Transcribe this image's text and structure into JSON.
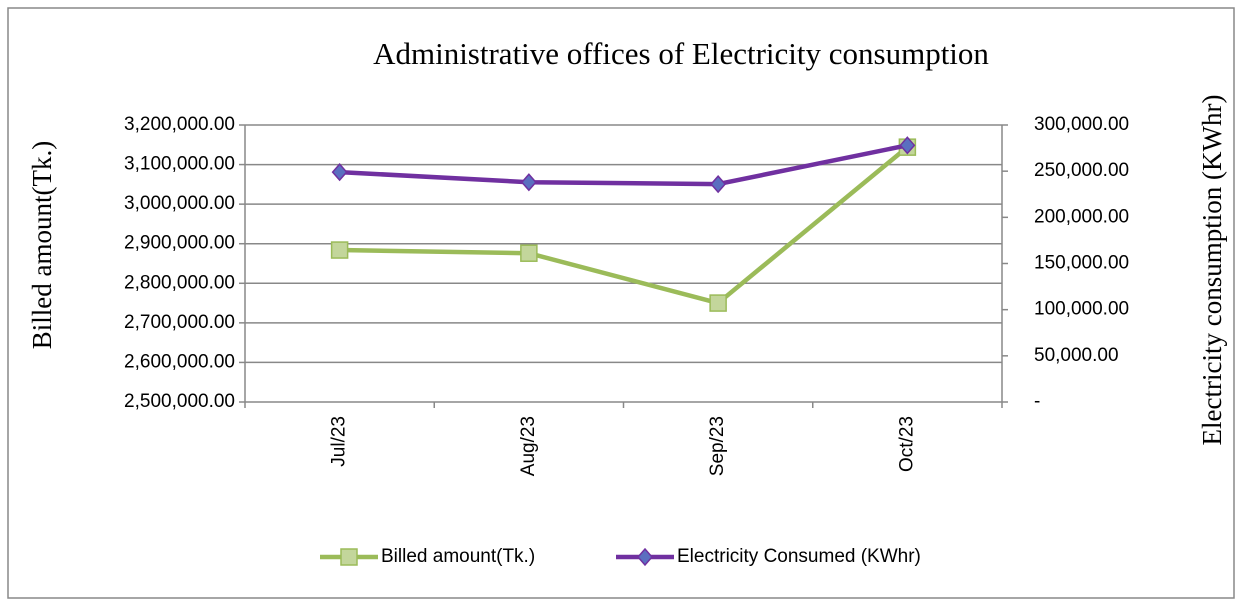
{
  "chart_data": {
    "type": "line",
    "title": "Administrative offices of Electricity consumption",
    "ylabel": "Billed amount(Tk.)",
    "y2label": "Electricity consumption (KWhr)",
    "categories": [
      "Jul/23",
      "Aug/23",
      "Sep/23",
      "Oct/23"
    ],
    "series": [
      {
        "name": "Billed amount(Tk.)",
        "color": "#9bbb59",
        "values": [
          2884000,
          2876000,
          2750000,
          3144000
        ]
      },
      {
        "name": "Electricity Consumed (KWhr)",
        "color": "#7030a0",
        "axis": "y2",
        "values": [
          249000,
          238000,
          236000,
          278000
        ]
      }
    ],
    "ylim": [
      2500000,
      3200000
    ],
    "yticks": [
      {
        "value": 2500000,
        "label": "2,500,000.00"
      },
      {
        "value": 2600000,
        "label": "2,600,000.00"
      },
      {
        "value": 2700000,
        "label": "2,700,000.00"
      },
      {
        "value": 2800000,
        "label": "2,800,000.00"
      },
      {
        "value": 2900000,
        "label": "2,900,000.00"
      },
      {
        "value": 3000000,
        "label": "3,000,000.00"
      },
      {
        "value": 3100000,
        "label": "3,100,000.00"
      },
      {
        "value": 3200000,
        "label": "3,200,000.00"
      }
    ],
    "y2lim": [
      0,
      300000
    ],
    "y2ticks": [
      {
        "value": 0,
        "label": "-"
      },
      {
        "value": 50000,
        "label": "50,000.00"
      },
      {
        "value": 100000,
        "label": "100,000.00"
      },
      {
        "value": 150000,
        "label": "150,000.00"
      },
      {
        "value": 200000,
        "label": "200,000.00"
      },
      {
        "value": 250000,
        "label": "250,000.00"
      },
      {
        "value": 300000,
        "label": "300,000.00"
      }
    ],
    "grid": true,
    "legend": "bottom"
  }
}
